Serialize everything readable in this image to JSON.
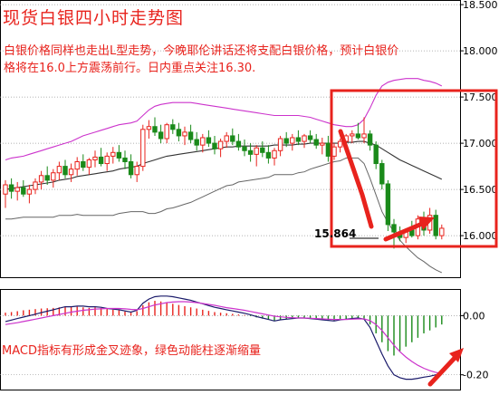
{
  "title": "现货白银四小时走势图",
  "annotation_line1": "白银价格同样也走出L型走势，今晚耶伦讲话还将支配白银价格，预计白银价",
  "annotation_line2": "格将在16.0上方震荡前行。日内重点关注16.30.",
  "macd_note": "MACD指标有形成金叉迹象，绿色动能柱逐渐缩量",
  "low_label": "15.864",
  "colors": {
    "up": "#e8231d",
    "down": "#1a8a1a",
    "boll_upper": "#cc33cc",
    "boll_mid": "#333333",
    "boll_lower": "#666666",
    "dif": "#1a1a6a",
    "dea": "#cc33cc",
    "highlight": "#e8231d"
  },
  "chart_data": [
    {
      "type": "candlestick",
      "name": "price",
      "y_ticks": [
        "18.500",
        "18.000",
        "17.500",
        "17.000",
        "16.500",
        "16.000"
      ],
      "ylim": [
        15.55,
        18.55
      ],
      "candles": [
        [
          16.45,
          16.6,
          16.3,
          16.55
        ],
        [
          16.55,
          16.62,
          16.4,
          16.48
        ],
        [
          16.48,
          16.58,
          16.38,
          16.52
        ],
        [
          16.52,
          16.6,
          16.42,
          16.45
        ],
        [
          16.45,
          16.55,
          16.35,
          16.5
        ],
        [
          16.5,
          16.62,
          16.45,
          16.58
        ],
        [
          16.58,
          16.7,
          16.5,
          16.65
        ],
        [
          16.65,
          16.75,
          16.55,
          16.6
        ],
        [
          16.6,
          16.72,
          16.52,
          16.68
        ],
        [
          16.68,
          16.8,
          16.6,
          16.75
        ],
        [
          16.75,
          16.82,
          16.62,
          16.66
        ],
        [
          16.66,
          16.78,
          16.58,
          16.72
        ],
        [
          16.72,
          16.85,
          16.65,
          16.8
        ],
        [
          16.8,
          16.88,
          16.7,
          16.74
        ],
        [
          16.74,
          16.84,
          16.66,
          16.82
        ],
        [
          16.82,
          16.92,
          16.74,
          16.85
        ],
        [
          16.85,
          16.95,
          16.75,
          16.78
        ],
        [
          16.78,
          16.9,
          16.7,
          16.86
        ],
        [
          16.86,
          16.96,
          16.78,
          16.9
        ],
        [
          16.9,
          16.98,
          16.8,
          16.84
        ],
        [
          16.84,
          16.92,
          16.72,
          16.8
        ],
        [
          16.8,
          16.88,
          16.62,
          16.66
        ],
        [
          16.66,
          16.8,
          16.58,
          16.75
        ],
        [
          16.75,
          17.2,
          16.7,
          17.15
        ],
        [
          17.15,
          17.25,
          17.05,
          17.18
        ],
        [
          17.18,
          17.28,
          17.08,
          17.12
        ],
        [
          17.12,
          17.2,
          17.0,
          17.05
        ],
        [
          17.05,
          17.22,
          17.0,
          17.2
        ],
        [
          17.2,
          17.26,
          17.1,
          17.15
        ],
        [
          17.15,
          17.22,
          17.02,
          17.08
        ],
        [
          17.08,
          17.18,
          16.98,
          17.12
        ],
        [
          17.12,
          17.2,
          17.0,
          17.04
        ],
        [
          17.04,
          17.12,
          16.92,
          16.98
        ],
        [
          16.98,
          17.1,
          16.9,
          17.06
        ],
        [
          17.06,
          17.14,
          16.96,
          17.0
        ],
        [
          17.0,
          17.08,
          16.88,
          16.94
        ],
        [
          16.94,
          17.05,
          16.85,
          17.02
        ],
        [
          17.02,
          17.12,
          16.95,
          17.08
        ],
        [
          17.08,
          17.16,
          16.98,
          17.02
        ],
        [
          17.02,
          17.1,
          16.92,
          16.96
        ],
        [
          16.96,
          17.04,
          16.86,
          16.92
        ],
        [
          16.92,
          17.0,
          16.8,
          16.88
        ],
        [
          16.88,
          16.98,
          16.75,
          16.95
        ],
        [
          16.95,
          17.02,
          16.85,
          16.9
        ],
        [
          16.9,
          16.98,
          16.78,
          16.84
        ],
        [
          16.84,
          16.95,
          16.76,
          16.92
        ],
        [
          16.92,
          17.08,
          16.86,
          17.05
        ],
        [
          17.05,
          17.12,
          16.96,
          17.0
        ],
        [
          17.0,
          17.1,
          16.92,
          17.06
        ],
        [
          17.06,
          17.14,
          16.98,
          17.02
        ],
        [
          17.02,
          17.1,
          16.95,
          17.08
        ],
        [
          17.08,
          17.14,
          17.0,
          17.04
        ],
        [
          17.04,
          17.1,
          16.94,
          16.98
        ],
        [
          16.98,
          17.06,
          16.88,
          17.0
        ],
        [
          17.0,
          17.08,
          16.8,
          16.86
        ],
        [
          16.86,
          17.0,
          16.82,
          16.96
        ],
        [
          16.96,
          17.05,
          16.9,
          17.02
        ],
        [
          17.02,
          17.1,
          16.96,
          17.08
        ],
        [
          17.08,
          17.14,
          17.0,
          17.1
        ],
        [
          17.1,
          17.22,
          17.04,
          17.06
        ],
        [
          17.06,
          17.28,
          17.0,
          17.1
        ],
        [
          17.1,
          17.14,
          16.92,
          16.98
        ],
        [
          16.98,
          17.02,
          16.72,
          16.78
        ],
        [
          16.78,
          16.82,
          16.5,
          16.56
        ],
        [
          16.56,
          16.6,
          16.05,
          16.12
        ],
        [
          16.12,
          16.18,
          15.86,
          16.04
        ],
        [
          16.04,
          16.1,
          15.94,
          15.98
        ],
        [
          15.98,
          16.08,
          15.92,
          16.06
        ],
        [
          16.06,
          16.16,
          15.98,
          16.0
        ],
        [
          16.0,
          16.22,
          15.96,
          16.18
        ],
        [
          16.18,
          16.26,
          16.0,
          16.06
        ],
        [
          16.06,
          16.3,
          16.02,
          16.22
        ],
        [
          16.22,
          16.28,
          15.96,
          16.0
        ],
        [
          16.0,
          16.12,
          15.96,
          16.08
        ]
      ],
      "boll_upper": [
        16.82,
        16.84,
        16.85,
        16.86,
        16.88,
        16.9,
        16.92,
        16.94,
        16.96,
        16.98,
        17.0,
        17.02,
        17.05,
        17.08,
        17.1,
        17.12,
        17.14,
        17.16,
        17.18,
        17.2,
        17.21,
        17.22,
        17.24,
        17.3,
        17.36,
        17.4,
        17.42,
        17.43,
        17.44,
        17.44,
        17.44,
        17.44,
        17.43,
        17.42,
        17.41,
        17.4,
        17.39,
        17.38,
        17.37,
        17.36,
        17.35,
        17.34,
        17.33,
        17.32,
        17.31,
        17.3,
        17.3,
        17.3,
        17.3,
        17.3,
        17.29,
        17.28,
        17.26,
        17.24,
        17.22,
        17.2,
        17.19,
        17.18,
        17.18,
        17.2,
        17.26,
        17.38,
        17.52,
        17.62,
        17.66,
        17.68,
        17.69,
        17.7,
        17.7,
        17.7,
        17.68,
        17.67,
        17.65,
        17.62
      ],
      "boll_mid": [
        16.5,
        16.51,
        16.52,
        16.53,
        16.54,
        16.55,
        16.56,
        16.57,
        16.58,
        16.6,
        16.61,
        16.62,
        16.64,
        16.65,
        16.66,
        16.67,
        16.68,
        16.69,
        16.7,
        16.72,
        16.73,
        16.74,
        16.75,
        16.78,
        16.8,
        16.82,
        16.84,
        16.86,
        16.87,
        16.88,
        16.89,
        16.9,
        16.91,
        16.92,
        16.93,
        16.94,
        16.95,
        16.96,
        16.96,
        16.97,
        16.97,
        16.97,
        16.97,
        16.97,
        16.97,
        16.98,
        16.98,
        16.98,
        16.98,
        16.99,
        16.99,
        17.0,
        17.0,
        17.0,
        17.0,
        17.0,
        17.0,
        17.01,
        17.01,
        17.02,
        17.02,
        17.0,
        16.98,
        16.94,
        16.9,
        16.86,
        16.82,
        16.79,
        16.76,
        16.73,
        16.7,
        16.67,
        16.64,
        16.61
      ],
      "boll_lower": [
        16.18,
        16.18,
        16.19,
        16.2,
        16.2,
        16.2,
        16.2,
        16.2,
        16.2,
        16.22,
        16.22,
        16.22,
        16.23,
        16.22,
        16.22,
        16.22,
        16.22,
        16.22,
        16.22,
        16.24,
        16.25,
        16.26,
        16.26,
        16.26,
        16.24,
        16.24,
        16.26,
        16.29,
        16.3,
        16.32,
        16.34,
        16.36,
        16.39,
        16.42,
        16.45,
        16.48,
        16.51,
        16.54,
        16.55,
        16.58,
        16.59,
        16.6,
        16.61,
        16.62,
        16.63,
        16.66,
        16.66,
        16.66,
        16.66,
        16.68,
        16.69,
        16.72,
        16.74,
        16.76,
        16.78,
        16.8,
        16.81,
        16.84,
        16.84,
        16.84,
        16.78,
        16.62,
        16.44,
        16.26,
        16.14,
        16.04,
        15.95,
        15.88,
        15.82,
        15.76,
        15.72,
        15.67,
        15.63,
        15.6
      ],
      "annotations": [
        "15.864"
      ]
    },
    {
      "type": "bar",
      "name": "MACD",
      "y_ticks": [
        "0.00",
        "-0.20"
      ],
      "ylim": [
        -0.25,
        0.09
      ],
      "histogram": [
        0.01,
        0.012,
        0.015,
        0.018,
        0.02,
        0.022,
        0.024,
        0.025,
        0.026,
        0.028,
        0.03,
        0.029,
        0.03,
        0.028,
        0.026,
        0.028,
        0.026,
        0.022,
        0.02,
        0.018,
        0.014,
        0.01,
        0.015,
        0.035,
        0.045,
        0.05,
        0.048,
        0.045,
        0.04,
        0.036,
        0.032,
        0.028,
        0.024,
        0.02,
        0.016,
        0.012,
        0.01,
        0.008,
        0.006,
        0.004,
        0.002,
        -0.002,
        -0.006,
        -0.01,
        -0.014,
        -0.018,
        -0.014,
        -0.012,
        -0.01,
        -0.008,
        -0.008,
        -0.01,
        -0.012,
        -0.014,
        -0.016,
        -0.018,
        -0.014,
        -0.012,
        -0.01,
        -0.008,
        -0.01,
        -0.03,
        -0.06,
        -0.09,
        -0.12,
        -0.135,
        -0.12,
        -0.105,
        -0.09,
        -0.075,
        -0.06,
        -0.05,
        -0.04,
        -0.03
      ],
      "dif": [
        -0.02,
        -0.015,
        -0.01,
        -0.005,
        0.0,
        0.005,
        0.01,
        0.015,
        0.02,
        0.025,
        0.03,
        0.03,
        0.032,
        0.032,
        0.03,
        0.03,
        0.028,
        0.024,
        0.022,
        0.02,
        0.016,
        0.012,
        0.018,
        0.042,
        0.056,
        0.064,
        0.066,
        0.066,
        0.064,
        0.06,
        0.056,
        0.052,
        0.046,
        0.04,
        0.034,
        0.028,
        0.024,
        0.02,
        0.016,
        0.012,
        0.008,
        0.003,
        -0.003,
        -0.008,
        -0.013,
        -0.018,
        -0.014,
        -0.012,
        -0.01,
        -0.008,
        -0.008,
        -0.01,
        -0.012,
        -0.014,
        -0.016,
        -0.018,
        -0.014,
        -0.012,
        -0.01,
        -0.008,
        -0.012,
        -0.04,
        -0.085,
        -0.13,
        -0.17,
        -0.2,
        -0.21,
        -0.215,
        -0.215,
        -0.212,
        -0.208,
        -0.205,
        -0.2,
        -0.195
      ],
      "dea": [
        -0.03,
        -0.027,
        -0.024,
        -0.02,
        -0.016,
        -0.012,
        -0.008,
        -0.004,
        0.0,
        0.004,
        0.008,
        0.012,
        0.015,
        0.018,
        0.02,
        0.022,
        0.023,
        0.024,
        0.024,
        0.024,
        0.023,
        0.021,
        0.02,
        0.024,
        0.03,
        0.036,
        0.04,
        0.044,
        0.046,
        0.047,
        0.047,
        0.046,
        0.044,
        0.041,
        0.038,
        0.035,
        0.031,
        0.027,
        0.024,
        0.021,
        0.018,
        0.014,
        0.01,
        0.006,
        0.002,
        -0.002,
        -0.004,
        -0.006,
        -0.007,
        -0.008,
        -0.008,
        -0.009,
        -0.01,
        -0.011,
        -0.012,
        -0.013,
        -0.013,
        -0.013,
        -0.012,
        -0.011,
        -0.011,
        -0.017,
        -0.03,
        -0.05,
        -0.075,
        -0.1,
        -0.122,
        -0.14,
        -0.155,
        -0.168,
        -0.178,
        -0.186,
        -0.192,
        -0.196
      ]
    }
  ]
}
